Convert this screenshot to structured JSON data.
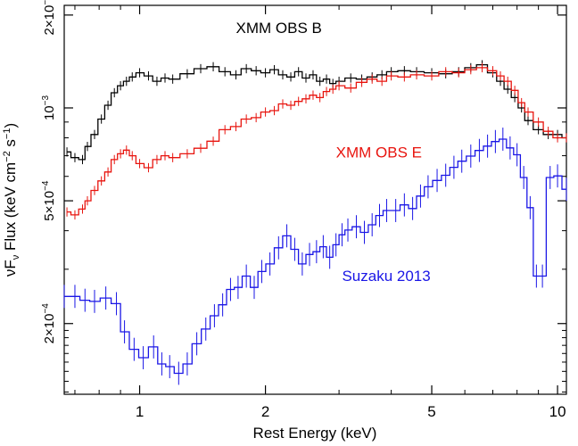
{
  "chart_data": {
    "type": "line",
    "xlabel": "Rest Energy (keV)",
    "ylabel_parts": [
      "νF",
      "ν",
      " Flux (keV cm",
      "−2",
      " s",
      "−1",
      ")"
    ],
    "x_scale": "log",
    "y_scale": "log",
    "xlim": [
      0.66,
      10.5
    ],
    "ylim": [
      0.000118,
      0.00215
    ],
    "x_ticks": [
      {
        "value": 1,
        "label": "1"
      },
      {
        "value": 2,
        "label": "2"
      },
      {
        "value": 5,
        "label": "5"
      },
      {
        "value": 10,
        "label": "10"
      }
    ],
    "y_ticks": [
      {
        "value": 0.0002,
        "mant": "2×10",
        "exp": "−4"
      },
      {
        "value": 0.0005,
        "mant": "5×10",
        "exp": "−4"
      },
      {
        "value": 0.001,
        "mant": "10",
        "exp": "−3"
      },
      {
        "value": 0.002,
        "mant": "2×10",
        "exp": "−3"
      }
    ],
    "legend": "none",
    "series": [
      {
        "name": "XMM OBS B",
        "color": "#000000",
        "label_pos": {
          "x": 1.7,
          "y": 0.00175
        },
        "x": [
          0.67,
          0.7,
          0.73,
          0.75,
          0.78,
          0.81,
          0.84,
          0.87,
          0.9,
          0.93,
          0.96,
          1.0,
          1.05,
          1.1,
          1.15,
          1.2,
          1.3,
          1.4,
          1.5,
          1.6,
          1.7,
          1.8,
          1.9,
          2.0,
          2.1,
          2.2,
          2.3,
          2.4,
          2.5,
          2.6,
          2.7,
          2.8,
          2.9,
          3.0,
          3.2,
          3.4,
          3.6,
          3.8,
          4.0,
          4.3,
          4.6,
          5.0,
          5.4,
          5.8,
          6.2,
          6.6,
          7.0,
          7.3,
          7.6,
          7.9,
          8.2,
          8.5,
          9.0,
          9.5,
          10.0,
          10.5
        ],
        "y": [
          0.00072,
          0.00069,
          0.00068,
          0.00075,
          0.00082,
          0.00092,
          0.00102,
          0.00112,
          0.00118,
          0.00122,
          0.00126,
          0.0013,
          0.00127,
          0.00122,
          0.00125,
          0.00124,
          0.00129,
          0.00134,
          0.00136,
          0.00131,
          0.00128,
          0.00134,
          0.00132,
          0.0013,
          0.00133,
          0.00128,
          0.00126,
          0.00131,
          0.00125,
          0.00128,
          0.00122,
          0.00124,
          0.0012,
          0.00122,
          0.00125,
          0.00124,
          0.00126,
          0.00128,
          0.00131,
          0.00132,
          0.00131,
          0.0013,
          0.00129,
          0.00131,
          0.00135,
          0.00138,
          0.0013,
          0.00122,
          0.00115,
          0.00108,
          0.001,
          0.00091,
          0.00085,
          0.00082,
          0.00082,
          0.0008
        ]
      },
      {
        "name": "XMM OBS E",
        "color": "#e8140e",
        "label_pos": {
          "x": 2.95,
          "y": 0.00069
        },
        "x": [
          0.67,
          0.7,
          0.73,
          0.75,
          0.78,
          0.81,
          0.84,
          0.87,
          0.9,
          0.93,
          0.96,
          1.0,
          1.05,
          1.1,
          1.15,
          1.2,
          1.3,
          1.4,
          1.5,
          1.6,
          1.7,
          1.8,
          1.9,
          2.0,
          2.1,
          2.2,
          2.3,
          2.4,
          2.5,
          2.6,
          2.7,
          2.8,
          2.9,
          3.0,
          3.2,
          3.4,
          3.6,
          3.8,
          4.0,
          4.3,
          4.6,
          5.0,
          5.4,
          5.8,
          6.2,
          6.6,
          7.0,
          7.3,
          7.6,
          7.9,
          8.2,
          8.5,
          9.0,
          9.5,
          10.0,
          10.5
        ],
        "y": [
          0.00046,
          0.00045,
          0.00047,
          0.0005,
          0.00054,
          0.00058,
          0.00062,
          0.00068,
          0.00071,
          0.00073,
          0.0007,
          0.00066,
          0.00064,
          0.00068,
          0.0007,
          0.00069,
          0.00071,
          0.00074,
          0.00078,
          0.00085,
          0.00087,
          0.00092,
          0.00093,
          0.00097,
          0.00098,
          0.00103,
          0.00102,
          0.00105,
          0.00107,
          0.0011,
          0.00108,
          0.00113,
          0.00115,
          0.00118,
          0.00116,
          0.00121,
          0.00124,
          0.00122,
          0.00127,
          0.00126,
          0.00128,
          0.00127,
          0.00131,
          0.0013,
          0.00133,
          0.00135,
          0.00132,
          0.00127,
          0.00122,
          0.00114,
          0.00104,
          0.00097,
          0.0009,
          0.00084,
          0.0008,
          0.0008
        ]
      },
      {
        "name": "Suzaku 2013",
        "color": "#1a16e6",
        "label_pos": {
          "x": 3.05,
          "y": 0.000275
        },
        "x": [
          0.66,
          0.7,
          0.74,
          0.78,
          0.83,
          0.88,
          0.92,
          0.97,
          1.02,
          1.08,
          1.13,
          1.18,
          1.24,
          1.3,
          1.37,
          1.44,
          1.51,
          1.58,
          1.65,
          1.72,
          1.8,
          1.88,
          1.96,
          2.05,
          2.15,
          2.25,
          2.35,
          2.45,
          2.55,
          2.65,
          2.75,
          2.85,
          2.95,
          3.05,
          3.15,
          3.3,
          3.45,
          3.6,
          3.75,
          3.9,
          4.1,
          4.3,
          4.5,
          4.7,
          4.9,
          5.15,
          5.4,
          5.65,
          5.9,
          6.2,
          6.5,
          6.8,
          7.1,
          7.4,
          7.7,
          8.0,
          8.3,
          8.6,
          8.9,
          9.2,
          9.6,
          10.0,
          10.5
        ],
        "y": [
          0.000245,
          0.000245,
          0.000238,
          0.000236,
          0.000242,
          0.000232,
          0.000188,
          0.000165,
          0.000155,
          0.000168,
          0.000148,
          0.000145,
          0.000138,
          0.000148,
          0.000172,
          0.000192,
          0.000212,
          0.00023,
          0.000258,
          0.000262,
          0.000285,
          0.000262,
          0.000295,
          0.000312,
          0.000352,
          0.000385,
          0.000348,
          0.000312,
          0.000335,
          0.000342,
          0.000355,
          0.000328,
          0.00036,
          0.000388,
          0.000402,
          0.000412,
          0.000395,
          0.000418,
          0.000448,
          0.000465,
          0.000465,
          0.000485,
          0.000472,
          0.000518,
          0.000555,
          0.000582,
          0.000605,
          0.000642,
          0.000672,
          0.000698,
          0.000728,
          0.000752,
          0.000778,
          0.000792,
          0.000742,
          0.000705,
          0.000595,
          0.000475,
          0.000285,
          0.000285,
          0.000595,
          0.000602,
          0.000545
        ]
      }
    ]
  }
}
